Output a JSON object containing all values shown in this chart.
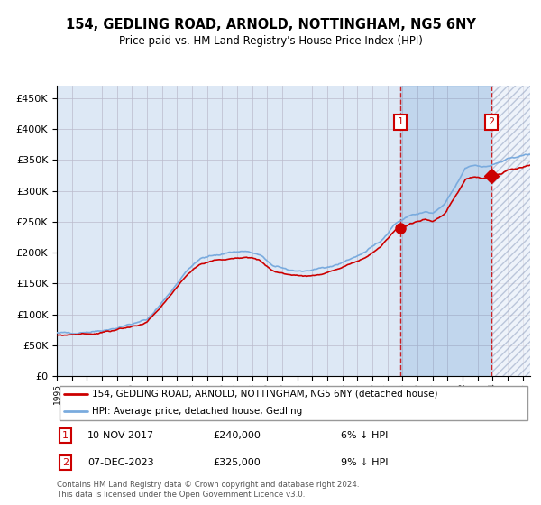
{
  "title": "154, GEDLING ROAD, ARNOLD, NOTTINGHAM, NG5 6NY",
  "subtitle": "Price paid vs. HM Land Registry's House Price Index (HPI)",
  "legend_line1": "154, GEDLING ROAD, ARNOLD, NOTTINGHAM, NG5 6NY (detached house)",
  "legend_line2": "HPI: Average price, detached house, Gedling",
  "annotation1_date": "10-NOV-2017",
  "annotation1_price": "£240,000",
  "annotation1_hpi": "6% ↓ HPI",
  "annotation2_date": "07-DEC-2023",
  "annotation2_price": "£325,000",
  "annotation2_hpi": "9% ↓ HPI",
  "footer": "Contains HM Land Registry data © Crown copyright and database right 2024.\nThis data is licensed under the Open Government Licence v3.0.",
  "hpi_color": "#7aabde",
  "sale_color": "#cc0000",
  "background_color": "#dde8f5",
  "grid_color": "#bbbbcc",
  "ylim": [
    0,
    470000
  ],
  "xlim_start": 1995.0,
  "xlim_end": 2026.5,
  "sale1_x": 2017.86,
  "sale1_y": 240000,
  "sale2_x": 2023.92,
  "sale2_y": 325000
}
